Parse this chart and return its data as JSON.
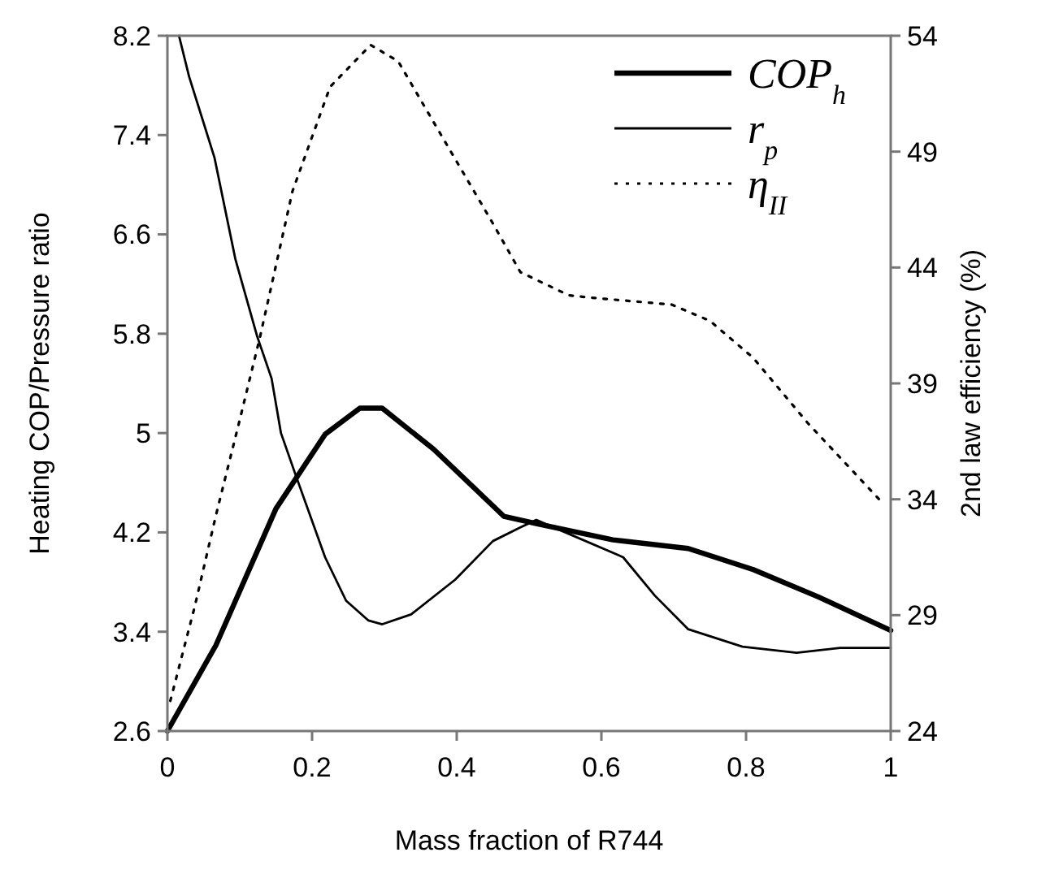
{
  "chart_data": {
    "type": "line",
    "xlabel": "Mass fraction of R744",
    "ylabel": "Heating COP/Pressure ratio",
    "y2label": "2nd law efficiency (%)",
    "xlim": [
      0,
      1
    ],
    "xticks": [
      0,
      0.2,
      0.4,
      0.6,
      0.8,
      1
    ],
    "ylim": [
      2.6,
      8.2
    ],
    "yticks": [
      2.6,
      3.4,
      4.2,
      5,
      5.8,
      6.6,
      7.4,
      8.2
    ],
    "y2lim": [
      24,
      54
    ],
    "y2ticks": [
      24,
      29,
      34,
      39,
      44,
      49,
      54
    ],
    "legend": "top right",
    "grid": false,
    "series": [
      {
        "name": "COP$_{h}$",
        "color": "#000000",
        "line_style": "solid",
        "x": [
          0,
          0.067,
          0.15,
          0.218,
          0.266,
          0.297,
          0.368,
          0.465,
          0.51,
          0.616,
          0.72,
          0.81,
          0.9,
          1
        ],
        "values": [
          2.6,
          3.29,
          4.39,
          4.99,
          5.2,
          5.2,
          4.87,
          4.33,
          4.27,
          4.14,
          4.07,
          3.9,
          3.68,
          3.41
        ]
      },
      {
        "name": "r$_{p}$",
        "color": "#000000",
        "line_style": "solid",
        "x": [
          0.016,
          0.03,
          0.065,
          0.094,
          0.124,
          0.144,
          0.157,
          0.178,
          0.218,
          0.247,
          0.278,
          0.297,
          0.337,
          0.398,
          0.45,
          0.488,
          0.51,
          0.63,
          0.674,
          0.72,
          0.795,
          0.87,
          0.93,
          1
        ],
        "values": [
          8.2,
          7.87,
          7.22,
          6.4,
          5.78,
          5.44,
          5.0,
          4.65,
          4.0,
          3.65,
          3.49,
          3.46,
          3.54,
          3.82,
          4.13,
          4.24,
          4.3,
          4.0,
          3.69,
          3.42,
          3.28,
          3.23,
          3.27,
          3.27
        ]
      },
      {
        "name": "η$_{II}$",
        "color": "#000000",
        "line_style": "dotted",
        "axis": "y2",
        "x": [
          0.004,
          0.038,
          0.067,
          0.099,
          0.128,
          0.173,
          0.225,
          0.281,
          0.319,
          0.375,
          0.45,
          0.488,
          0.555,
          0.585,
          0.697,
          0.75,
          0.81,
          0.885,
          0.99
        ],
        "values": [
          25.3,
          29.4,
          33.3,
          37.3,
          41.0,
          47.3,
          51.8,
          53.6,
          52.9,
          49.9,
          45.9,
          43.8,
          42.8,
          42.7,
          42.4,
          41.7,
          40.1,
          37.3,
          33.8
        ]
      }
    ]
  }
}
